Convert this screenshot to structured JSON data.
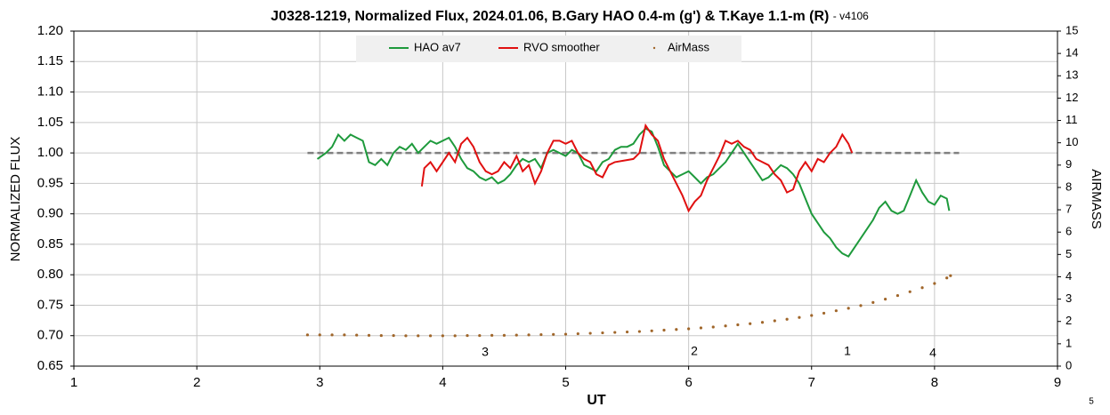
{
  "chart_data": {
    "type": "line",
    "title": "J0328-1219, Normalized Flux, 2024.01.06, B.Gary HAO 0.4-m (g') & T.Kaye 1.1-m (R)",
    "subtitle": "- v4106",
    "xlabel": "UT",
    "ylabel": "NORMALIZED FLUX",
    "y2label": "AIRMASS",
    "xlim": [
      1,
      9
    ],
    "xticks": [
      1,
      2,
      3,
      4,
      5,
      6,
      7,
      8,
      9
    ],
    "ylim": [
      0.65,
      1.2
    ],
    "yticks": [
      0.65,
      {
        "value": 0.7,
        "label": "0.70"
      },
      0.75,
      {
        "value": 0.8,
        "label": "0.80"
      },
      0.85,
      {
        "value": 0.9,
        "label": "0.90"
      },
      0.95,
      {
        "value": 1.0,
        "label": "1.00"
      },
      1.05,
      {
        "value": 1.1,
        "label": "1.10"
      },
      1.15,
      {
        "value": 1.2,
        "label": "1.20"
      }
    ],
    "y2lim": [
      0,
      15
    ],
    "y2ticks": [
      0,
      1,
      2,
      3,
      4,
      5,
      6,
      7,
      8,
      9,
      10,
      11,
      12,
      13,
      14,
      15
    ],
    "grid": true,
    "legend": "top",
    "annotations": [
      "3",
      "2",
      "1",
      "4",
      "5"
    ],
    "reference_line": {
      "value": 1.0,
      "x": [
        2.9,
        8.2
      ],
      "color": "#808080"
    },
    "series": [
      {
        "name": "HAO av7",
        "color": "#1e9a3c",
        "style": "line",
        "x": [
          2.98,
          3.05,
          3.1,
          3.15,
          3.2,
          3.25,
          3.3,
          3.35,
          3.4,
          3.45,
          3.5,
          3.55,
          3.6,
          3.65,
          3.7,
          3.75,
          3.8,
          3.85,
          3.9,
          3.95,
          4.0,
          4.05,
          4.1,
          4.15,
          4.2,
          4.25,
          4.3,
          4.35,
          4.4,
          4.45,
          4.5,
          4.55,
          4.6,
          4.65,
          4.7,
          4.75,
          4.8,
          4.85,
          4.9,
          4.95,
          5.0,
          5.05,
          5.1,
          5.15,
          5.2,
          5.25,
          5.3,
          5.35,
          5.4,
          5.45,
          5.5,
          5.55,
          5.6,
          5.65,
          5.7,
          5.75,
          5.8,
          5.85,
          5.9,
          5.95,
          6.0,
          6.05,
          6.1,
          6.15,
          6.2,
          6.25,
          6.3,
          6.35,
          6.4,
          6.45,
          6.5,
          6.55,
          6.6,
          6.65,
          6.7,
          6.75,
          6.8,
          6.85,
          6.9,
          6.95,
          7.0,
          7.05,
          7.1,
          7.15,
          7.2,
          7.25,
          7.3,
          7.35,
          7.4,
          7.45,
          7.5,
          7.55,
          7.6,
          7.65,
          7.7,
          7.75,
          7.8,
          7.85,
          7.9,
          7.95,
          8.0,
          8.05,
          8.1,
          8.12
        ],
        "values": [
          0.99,
          1.0,
          1.01,
          1.03,
          1.02,
          1.03,
          1.025,
          1.02,
          0.985,
          0.98,
          0.99,
          0.98,
          1.0,
          1.01,
          1.005,
          1.015,
          1.0,
          1.01,
          1.02,
          1.015,
          1.02,
          1.025,
          1.01,
          0.99,
          0.975,
          0.97,
          0.96,
          0.955,
          0.96,
          0.95,
          0.955,
          0.965,
          0.98,
          0.99,
          0.985,
          0.99,
          0.975,
          1.0,
          1.005,
          1.0,
          0.995,
          1.005,
          1.0,
          0.98,
          0.975,
          0.97,
          0.985,
          0.99,
          1.005,
          1.01,
          1.01,
          1.015,
          1.03,
          1.04,
          1.035,
          1.01,
          0.98,
          0.97,
          0.96,
          0.965,
          0.97,
          0.96,
          0.95,
          0.96,
          0.965,
          0.975,
          0.985,
          1.0,
          1.015,
          1.0,
          0.985,
          0.97,
          0.955,
          0.96,
          0.97,
          0.98,
          0.975,
          0.965,
          0.95,
          0.925,
          0.9,
          0.885,
          0.87,
          0.86,
          0.845,
          0.835,
          0.83,
          0.845,
          0.86,
          0.875,
          0.89,
          0.91,
          0.92,
          0.905,
          0.9,
          0.905,
          0.93,
          0.955,
          0.935,
          0.92,
          0.915,
          0.93,
          0.925,
          0.905
        ]
      },
      {
        "name": "RVO smoother",
        "color": "#e01010",
        "style": "line",
        "x": [
          3.83,
          3.85,
          3.9,
          3.95,
          4.0,
          4.05,
          4.1,
          4.15,
          4.2,
          4.25,
          4.3,
          4.35,
          4.4,
          4.45,
          4.5,
          4.55,
          4.6,
          4.65,
          4.7,
          4.75,
          4.8,
          4.85,
          4.9,
          4.95,
          5.0,
          5.05,
          5.1,
          5.15,
          5.2,
          5.25,
          5.3,
          5.35,
          5.4,
          5.55,
          5.6,
          5.65,
          5.7,
          5.75,
          5.8,
          5.85,
          5.9,
          5.95,
          6.0,
          6.05,
          6.1,
          6.15,
          6.2,
          6.25,
          6.3,
          6.35,
          6.4,
          6.45,
          6.5,
          6.55,
          6.6,
          6.65,
          6.7,
          6.75,
          6.8,
          6.85,
          6.9,
          6.95,
          7.0,
          7.05,
          7.1,
          7.15,
          7.2,
          7.25,
          7.3,
          7.33
        ],
        "values": [
          0.945,
          0.975,
          0.985,
          0.97,
          0.985,
          1.0,
          0.985,
          1.015,
          1.025,
          1.01,
          0.985,
          0.97,
          0.965,
          0.97,
          0.985,
          0.975,
          0.995,
          0.97,
          0.98,
          0.95,
          0.97,
          1.0,
          1.02,
          1.02,
          1.015,
          1.02,
          1.0,
          0.99,
          0.985,
          0.965,
          0.96,
          0.98,
          0.985,
          0.99,
          1.0,
          1.045,
          1.03,
          1.02,
          0.99,
          0.97,
          0.95,
          0.93,
          0.905,
          0.92,
          0.93,
          0.955,
          0.975,
          0.995,
          1.02,
          1.015,
          1.02,
          1.01,
          1.005,
          0.99,
          0.985,
          0.98,
          0.965,
          0.955,
          0.935,
          0.94,
          0.97,
          0.985,
          0.97,
          0.99,
          0.985,
          1.0,
          1.01,
          1.03,
          1.015,
          1.0
        ]
      },
      {
        "name": "AirMass",
        "color": "#a0662a",
        "style": "dots",
        "axis": "y2",
        "x": [
          2.9,
          3.0,
          3.1,
          3.2,
          3.3,
          3.4,
          3.5,
          3.6,
          3.7,
          3.8,
          3.9,
          4.0,
          4.1,
          4.2,
          4.3,
          4.4,
          4.5,
          4.6,
          4.7,
          4.8,
          4.9,
          5.0,
          5.1,
          5.2,
          5.3,
          5.4,
          5.5,
          5.6,
          5.7,
          5.8,
          5.9,
          6.0,
          6.1,
          6.2,
          6.3,
          6.4,
          6.5,
          6.6,
          6.7,
          6.8,
          6.9,
          7.0,
          7.1,
          7.2,
          7.3,
          7.4,
          7.5,
          7.6,
          7.7,
          7.8,
          7.9,
          8.0,
          8.1,
          8.13
        ],
        "values": [
          1.4,
          1.4,
          1.4,
          1.4,
          1.39,
          1.38,
          1.37,
          1.37,
          1.36,
          1.36,
          1.36,
          1.36,
          1.36,
          1.37,
          1.37,
          1.38,
          1.38,
          1.39,
          1.4,
          1.41,
          1.42,
          1.43,
          1.45,
          1.47,
          1.49,
          1.51,
          1.53,
          1.55,
          1.58,
          1.61,
          1.64,
          1.67,
          1.71,
          1.75,
          1.8,
          1.85,
          1.9,
          1.96,
          2.03,
          2.1,
          2.18,
          2.27,
          2.37,
          2.48,
          2.59,
          2.71,
          2.85,
          3.0,
          3.16,
          3.33,
          3.51,
          3.7,
          3.95,
          4.05
        ]
      }
    ]
  }
}
